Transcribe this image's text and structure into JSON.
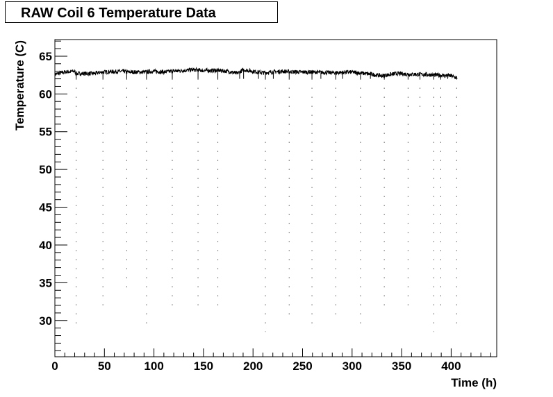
{
  "chart_data": {
    "type": "scatter",
    "title": "RAW Coil 6 Temperature Data",
    "xlabel": "Time (h)",
    "ylabel": "Temperature (C)",
    "xlim": [
      0,
      446
    ],
    "ylim": [
      25.2,
      67.2
    ],
    "x_ticks": [
      0,
      50,
      100,
      150,
      200,
      250,
      300,
      350,
      400
    ],
    "y_ticks": [
      30,
      35,
      40,
      45,
      50,
      55,
      60,
      65
    ],
    "x_tick_labels": [
      "0",
      "50",
      "100",
      "150",
      "200",
      "250",
      "300",
      "350",
      "400"
    ],
    "y_tick_labels": [
      "30",
      "35",
      "40",
      "45",
      "50",
      "55",
      "60",
      "65"
    ],
    "grid": false,
    "series": [
      {
        "baseline": [
          [
            0,
            62.6
          ],
          [
            10,
            62.9
          ],
          [
            20,
            63.0
          ],
          [
            21,
            62.7
          ],
          [
            40,
            62.7
          ],
          [
            48,
            62.9
          ],
          [
            70,
            63.0
          ],
          [
            72,
            62.9
          ],
          [
            80,
            62.9
          ],
          [
            92,
            62.9
          ],
          [
            100,
            63.0
          ],
          [
            110,
            62.9
          ],
          [
            118,
            63.0
          ],
          [
            140,
            63.2
          ],
          [
            150,
            63.1
          ],
          [
            165,
            63.1
          ],
          [
            175,
            63.0
          ],
          [
            184,
            62.7
          ],
          [
            190,
            63.2
          ],
          [
            200,
            63.0
          ],
          [
            210,
            62.8
          ],
          [
            230,
            63.0
          ],
          [
            245,
            62.9
          ],
          [
            260,
            62.9
          ],
          [
            280,
            62.8
          ],
          [
            300,
            62.9
          ],
          [
            320,
            62.6
          ],
          [
            330,
            62.4
          ],
          [
            345,
            62.7
          ],
          [
            360,
            62.6
          ],
          [
            370,
            62.6
          ],
          [
            385,
            62.5
          ],
          [
            400,
            62.4
          ],
          [
            406,
            62.1
          ]
        ],
        "dips": [
          [
            21.5,
            29.0
          ],
          [
            48.5,
            31.0
          ],
          [
            72.5,
            33.5
          ],
          [
            92.5,
            29.0
          ],
          [
            118.5,
            31.0
          ],
          [
            144.5,
            32.0
          ],
          [
            164.5,
            31.5
          ],
          [
            186.5,
            60.5
          ],
          [
            190.5,
            59.5
          ],
          [
            205.5,
            61.0
          ],
          [
            212.5,
            28.5
          ],
          [
            220.5,
            59.5
          ],
          [
            236.5,
            30.0
          ],
          [
            259.5,
            29.0
          ],
          [
            268.5,
            60.5
          ],
          [
            283.5,
            30.0
          ],
          [
            290.5,
            59.5
          ],
          [
            308.5,
            29.5
          ],
          [
            318.5,
            60.5
          ],
          [
            332.5,
            31.0
          ],
          [
            356.5,
            31.0
          ],
          [
            368.5,
            57.5
          ],
          [
            382.5,
            28.5
          ],
          [
            389.5,
            31.5
          ],
          [
            396.5,
            59.5
          ],
          [
            405.5,
            29.5
          ]
        ]
      }
    ]
  }
}
